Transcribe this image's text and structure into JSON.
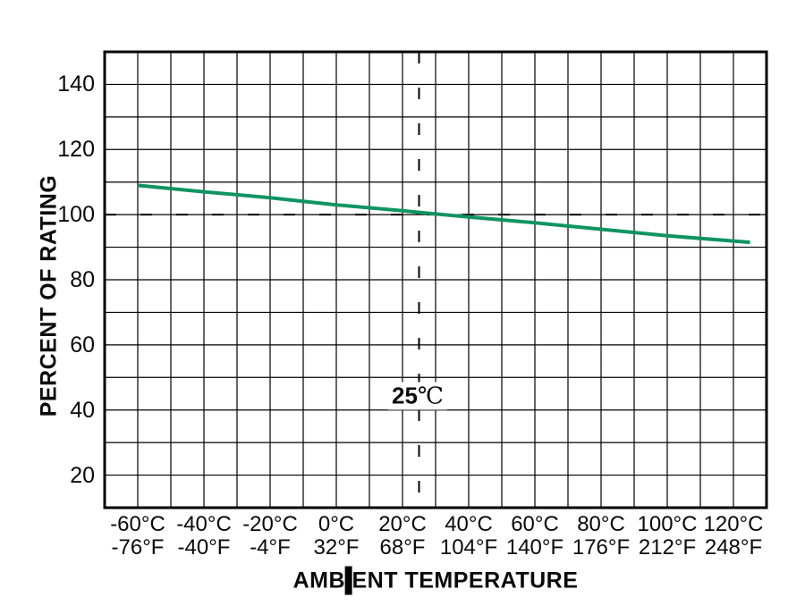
{
  "labels": {
    "xlabel_pre": "AMB",
    "xlabel_cursor": "I",
    "xlabel_post": "ENT TEMPERATURE"
  },
  "chart_data": {
    "type": "line",
    "title": "",
    "xlabel": "AMBIENT TEMPERATURE",
    "ylabel": "PERCENT OF RATING",
    "xlim_celsius": [
      -70,
      130
    ],
    "ylim_percent": [
      10,
      150
    ],
    "grid": {
      "visible": true,
      "spacing_celsius": 10,
      "spacing_percent": 10,
      "color": "#000000"
    },
    "y_ticks": [
      20,
      40,
      60,
      80,
      100,
      120,
      140
    ],
    "x_ticks": [
      {
        "celsius": -60,
        "label_c": "-60°C",
        "label_f": "-76°F"
      },
      {
        "celsius": -40,
        "label_c": "-40°C",
        "label_f": "-40°F"
      },
      {
        "celsius": -20,
        "label_c": "-20°C",
        "label_f": "-4°F"
      },
      {
        "celsius": 0,
        "label_c": "0°C",
        "label_f": "32°F"
      },
      {
        "celsius": 20,
        "label_c": "20°C",
        "label_f": "68°F"
      },
      {
        "celsius": 40,
        "label_c": "40°C",
        "label_f": "104°F"
      },
      {
        "celsius": 60,
        "label_c": "60°C",
        "label_f": "140°F"
      },
      {
        "celsius": 80,
        "label_c": "80°C",
        "label_f": "176°F"
      },
      {
        "celsius": 100,
        "label_c": "100°C",
        "label_f": "212°F"
      },
      {
        "celsius": 120,
        "label_c": "120°C",
        "label_f": "248°F"
      }
    ],
    "series": [
      {
        "name": "percent-of-rating-derating-curve",
        "color": "#0f9462",
        "points_c_pct": [
          [
            -60,
            109
          ],
          [
            -40,
            107
          ],
          [
            -20,
            105.2
          ],
          [
            0,
            103
          ],
          [
            20,
            101.2
          ],
          [
            25,
            100.7
          ],
          [
            40,
            99.3
          ],
          [
            60,
            97.5
          ],
          [
            80,
            95.5
          ],
          [
            100,
            93.5
          ],
          [
            125,
            91.5
          ]
        ]
      }
    ],
    "reference_lines": {
      "style": "dashed",
      "horizontal_percent": 100,
      "vertical_celsius": 25,
      "annotation_value": "25",
      "annotation_unit": "℃"
    }
  }
}
